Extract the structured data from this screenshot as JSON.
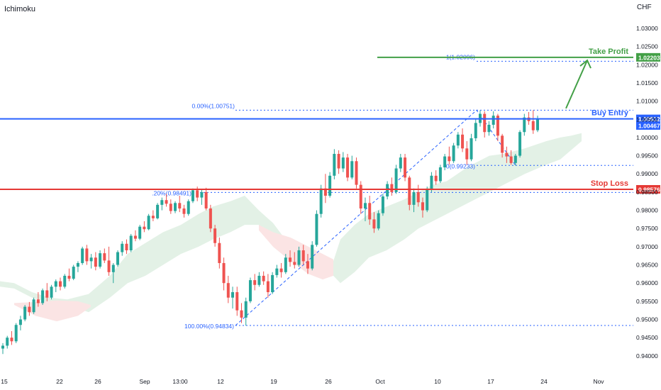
{
  "indicator": "Ichimoku",
  "currency": "CHF",
  "colors": {
    "up": "#26a69a",
    "down": "#ef5350",
    "take_profit": "#43a047",
    "buy_entry": "#2962ff",
    "stop_loss": "#e53935",
    "fib": "#2962ff",
    "cloud_bull": "#e3f1e6",
    "cloud_bear": "#fbe4e4"
  },
  "chart_data": {
    "type": "candlestick",
    "x_ticks": [
      "15",
      "22",
      "26",
      "Sep",
      "13:00",
      "12",
      "19",
      "26",
      "Oct",
      "10",
      "17",
      "24",
      "Nov"
    ],
    "y_ticks": [
      "1.03000",
      "1.02500",
      "1.02000",
      "1.01500",
      "1.01000",
      "1.00500",
      "1.00000",
      "0.99500",
      "0.99000",
      "0.98500",
      "0.98000",
      "0.97500",
      "0.97000",
      "0.96500",
      "0.96000",
      "0.95500",
      "0.95000",
      "0.94500",
      "0.94000"
    ],
    "ylim": [
      0.9388,
      1.0335
    ],
    "levels": [
      {
        "name": "take_profit",
        "label": "Take Profit",
        "price": 1.02203,
        "badge": "1.02203"
      },
      {
        "name": "buy_entry",
        "label": "Buy Entry",
        "price": 1.00512,
        "badge": "1.00512"
      },
      {
        "name": "stop_loss",
        "label": "Stop Loss",
        "price": 0.98576,
        "badge": "0.98576"
      }
    ],
    "price_badges": [
      {
        "price": 1.00467,
        "text": "1.00467"
      }
    ],
    "fib_labels": [
      {
        "text": "0.00%(1.00751)",
        "price": 1.00751
      },
      {
        "text": "1(1.02096)",
        "price": 1.02096
      },
      {
        "text": "0(0.99233)",
        "price": 0.99233
      },
      {
        "text": ".20%(0.98491)",
        "price": 0.98491
      },
      {
        "text": "100.00%(0.94834)",
        "price": 0.94834
      }
    ],
    "candles": [
      [
        0.942,
        0.9435,
        0.9405,
        0.9428
      ],
      [
        0.9428,
        0.9455,
        0.942,
        0.945
      ],
      [
        0.945,
        0.9468,
        0.943,
        0.944
      ],
      [
        0.944,
        0.949,
        0.9435,
        0.9485
      ],
      [
        0.9485,
        0.951,
        0.947,
        0.95
      ],
      [
        0.95,
        0.954,
        0.9495,
        0.9535
      ],
      [
        0.9535,
        0.9548,
        0.951,
        0.952
      ],
      [
        0.952,
        0.956,
        0.9515,
        0.9555
      ],
      [
        0.9555,
        0.9575,
        0.9535,
        0.9545
      ],
      [
        0.9545,
        0.9585,
        0.954,
        0.958
      ],
      [
        0.958,
        0.96,
        0.955,
        0.956
      ],
      [
        0.956,
        0.9595,
        0.9555,
        0.959
      ],
      [
        0.959,
        0.961,
        0.9575,
        0.9605
      ],
      [
        0.9605,
        0.9615,
        0.958,
        0.959
      ],
      [
        0.959,
        0.9625,
        0.9585,
        0.962
      ],
      [
        0.962,
        0.964,
        0.9605,
        0.9612
      ],
      [
        0.9612,
        0.965,
        0.9608,
        0.9645
      ],
      [
        0.9645,
        0.966,
        0.963,
        0.9655
      ],
      [
        0.9655,
        0.97,
        0.965,
        0.9695
      ],
      [
        0.9695,
        0.9705,
        0.965,
        0.966
      ],
      [
        0.966,
        0.968,
        0.964,
        0.967
      ],
      [
        0.967,
        0.9685,
        0.9635,
        0.9645
      ],
      [
        0.9645,
        0.969,
        0.964,
        0.9682
      ],
      [
        0.9682,
        0.9695,
        0.9655,
        0.9662
      ],
      [
        0.9662,
        0.97,
        0.962,
        0.963
      ],
      [
        0.963,
        0.9655,
        0.96,
        0.965
      ],
      [
        0.965,
        0.969,
        0.9645,
        0.9685
      ],
      [
        0.9685,
        0.9715,
        0.9675,
        0.9708
      ],
      [
        0.9708,
        0.972,
        0.968,
        0.969
      ],
      [
        0.969,
        0.9735,
        0.9685,
        0.973
      ],
      [
        0.973,
        0.9745,
        0.9715,
        0.9722
      ],
      [
        0.9722,
        0.976,
        0.9718,
        0.9755
      ],
      [
        0.9755,
        0.977,
        0.974,
        0.9748
      ],
      [
        0.9748,
        0.979,
        0.9745,
        0.9785
      ],
      [
        0.9785,
        0.98,
        0.977,
        0.9778
      ],
      [
        0.9778,
        0.982,
        0.9775,
        0.9815
      ],
      [
        0.9815,
        0.9835,
        0.98,
        0.9828
      ],
      [
        0.9828,
        0.9845,
        0.981,
        0.9818
      ],
      [
        0.9818,
        0.983,
        0.979,
        0.9798
      ],
      [
        0.9798,
        0.9825,
        0.9792,
        0.982
      ],
      [
        0.982,
        0.984,
        0.9795,
        0.9805
      ],
      [
        0.9805,
        0.9815,
        0.978,
        0.979
      ],
      [
        0.979,
        0.983,
        0.9785,
        0.9825
      ],
      [
        0.9825,
        0.986,
        0.982,
        0.9855
      ],
      [
        0.9855,
        0.9865,
        0.9825,
        0.9835
      ],
      [
        0.9835,
        0.9858,
        0.9815,
        0.985
      ],
      [
        0.985,
        0.9862,
        0.98,
        0.9805
      ],
      [
        0.9805,
        0.9815,
        0.974,
        0.975
      ],
      [
        0.975,
        0.976,
        0.97,
        0.971
      ],
      [
        0.971,
        0.9725,
        0.964,
        0.9655
      ],
      [
        0.9655,
        0.967,
        0.958,
        0.96
      ],
      [
        0.96,
        0.962,
        0.9545,
        0.956
      ],
      [
        0.956,
        0.959,
        0.953,
        0.9575
      ],
      [
        0.9575,
        0.959,
        0.951,
        0.9525
      ],
      [
        0.9525,
        0.9545,
        0.949,
        0.9505
      ],
      [
        0.9505,
        0.956,
        0.9483,
        0.955
      ],
      [
        0.955,
        0.9615,
        0.9545,
        0.9608
      ],
      [
        0.9608,
        0.9625,
        0.958,
        0.9595
      ],
      [
        0.9595,
        0.963,
        0.959,
        0.962
      ],
      [
        0.962,
        0.9632,
        0.9595,
        0.9605
      ],
      [
        0.9605,
        0.9625,
        0.956,
        0.9575
      ],
      [
        0.9575,
        0.963,
        0.957,
        0.9622
      ],
      [
        0.9622,
        0.965,
        0.9615,
        0.964
      ],
      [
        0.964,
        0.9655,
        0.9615,
        0.963
      ],
      [
        0.963,
        0.968,
        0.9625,
        0.967
      ],
      [
        0.967,
        0.969,
        0.9645,
        0.9658
      ],
      [
        0.9658,
        0.9685,
        0.964,
        0.965
      ],
      [
        0.965,
        0.97,
        0.9645,
        0.969
      ],
      [
        0.969,
        0.9705,
        0.965,
        0.966
      ],
      [
        0.966,
        0.968,
        0.9625,
        0.964
      ],
      [
        0.964,
        0.9715,
        0.9635,
        0.9705
      ],
      [
        0.9705,
        0.98,
        0.97,
        0.979
      ],
      [
        0.979,
        0.987,
        0.978,
        0.986
      ],
      [
        0.986,
        0.99,
        0.982,
        0.984
      ],
      [
        0.984,
        0.9905,
        0.9835,
        0.9895
      ],
      [
        0.9895,
        0.9968,
        0.9885,
        0.9955
      ],
      [
        0.9955,
        0.9965,
        0.99,
        0.9915
      ],
      [
        0.9915,
        0.996,
        0.9905,
        0.9945
      ],
      [
        0.9945,
        0.9955,
        0.988,
        0.989
      ],
      [
        0.989,
        0.995,
        0.9885,
        0.9935
      ],
      [
        0.9935,
        0.9945,
        0.986,
        0.987
      ],
      [
        0.987,
        0.988,
        0.979,
        0.9805
      ],
      [
        0.9805,
        0.9835,
        0.977,
        0.982
      ],
      [
        0.982,
        0.984,
        0.976,
        0.9775
      ],
      [
        0.9775,
        0.9795,
        0.9738,
        0.975
      ],
      [
        0.975,
        0.98,
        0.9745,
        0.9792
      ],
      [
        0.9792,
        0.9845,
        0.9785,
        0.9838
      ],
      [
        0.9838,
        0.988,
        0.983,
        0.9872
      ],
      [
        0.9872,
        0.989,
        0.984,
        0.985
      ],
      [
        0.985,
        0.9925,
        0.9845,
        0.9915
      ],
      [
        0.9915,
        0.9955,
        0.9905,
        0.9945
      ],
      [
        0.9945,
        0.9955,
        0.988,
        0.989
      ],
      [
        0.989,
        0.9895,
        0.98,
        0.9815
      ],
      [
        0.9815,
        0.986,
        0.9795,
        0.985
      ],
      [
        0.985,
        0.987,
        0.981,
        0.9822
      ],
      [
        0.9822,
        0.9835,
        0.978,
        0.98
      ],
      [
        0.98,
        0.9865,
        0.9795,
        0.9858
      ],
      [
        0.9858,
        0.9905,
        0.985,
        0.9895
      ],
      [
        0.9895,
        0.991,
        0.987,
        0.988
      ],
      [
        0.988,
        0.9925,
        0.9875,
        0.9918
      ],
      [
        0.9918,
        0.9955,
        0.991,
        0.9948
      ],
      [
        0.9948,
        0.9975,
        0.9925,
        0.9935
      ],
      [
        0.9935,
        0.9985,
        0.993,
        0.9978
      ],
      [
        0.9978,
        1.0015,
        0.997,
        1.0008
      ],
      [
        1.0008,
        1.0025,
        0.996,
        0.997
      ],
      [
        0.997,
        0.999,
        0.9925,
        0.994
      ],
      [
        0.994,
        1.001,
        0.9935,
        0.9998
      ],
      [
        0.9998,
        1.005,
        0.999,
        1.004
      ],
      [
        1.004,
        1.0075,
        1.003,
        1.0065
      ],
      [
        1.0065,
        1.0072,
        1.0,
        1.0015
      ],
      [
        1.0015,
        1.0045,
        1.0005,
        1.0035
      ],
      [
        1.0035,
        1.0072,
        1.0025,
        1.006
      ],
      [
        1.006,
        1.0065,
        0.999,
        1.0005
      ],
      [
        1.0005,
        1.001,
        0.9945,
        0.9958
      ],
      [
        0.9958,
        0.9975,
        0.993,
        0.9948
      ],
      [
        0.9948,
        0.9965,
        0.9925,
        0.993
      ],
      [
        0.993,
        0.9955,
        0.9923,
        0.995
      ],
      [
        0.995,
        1.002,
        0.9945,
        1.0015
      ],
      [
        1.0015,
        1.0065,
        1.0005,
        1.0055
      ],
      [
        1.0055,
        1.007,
        1.0035,
        1.0045
      ],
      [
        1.0045,
        1.0075,
        1.001,
        1.002
      ],
      [
        1.002,
        1.006,
        1.0015,
        1.0052
      ]
    ],
    "cloud": {
      "bull_upper": [
        [
          0,
          0.9605
        ],
        [
          20,
          0.96
        ],
        [
          45,
          0.9575
        ],
        [
          70,
          0.956
        ],
        [
          95,
          0.9555
        ],
        [
          125,
          0.957
        ],
        [
          155,
          0.962
        ],
        [
          180,
          0.968
        ],
        [
          205,
          0.971
        ],
        [
          230,
          0.974
        ],
        [
          255,
          0.976
        ],
        [
          280,
          0.979
        ],
        [
          300,
          0.981
        ],
        [
          325,
          0.9825
        ],
        [
          345,
          0.984
        ],
        [
          365,
          0.98
        ],
        [
          385,
          0.9765
        ],
        [
          410,
          0.97
        ],
        [
          435,
          0.9675
        ],
        [
          470,
          0.966
        ],
        [
          480,
          0.972
        ],
        [
          500,
          0.976
        ],
        [
          520,
          0.979
        ],
        [
          545,
          0.981
        ],
        [
          570,
          0.983
        ],
        [
          590,
          0.985
        ],
        [
          610,
          0.987
        ],
        [
          630,
          0.988
        ],
        [
          660,
          0.992
        ],
        [
          690,
          0.995
        ],
        [
          710,
          0.9955
        ],
        [
          740,
          0.997
        ],
        [
          770,
          0.999
        ],
        [
          790,
          1.0
        ],
        [
          805,
          1.0005
        ],
        [
          820,
          1.0012
        ]
      ],
      "bull_lower": [
        [
          0,
          0.959
        ],
        [
          20,
          0.9585
        ],
        [
          45,
          0.956
        ],
        [
          70,
          0.9545
        ],
        [
          95,
          0.954
        ],
        [
          125,
          0.952
        ],
        [
          155,
          0.956
        ],
        [
          180,
          0.96
        ],
        [
          205,
          0.962
        ],
        [
          230,
          0.965
        ],
        [
          255,
          0.968
        ],
        [
          280,
          0.97
        ],
        [
          300,
          0.972
        ],
        [
          325,
          0.974
        ],
        [
          345,
          0.976
        ],
        [
          365,
          0.976
        ],
        [
          385,
          0.97
        ],
        [
          410,
          0.966
        ],
        [
          435,
          0.963
        ],
        [
          470,
          0.962
        ],
        [
          480,
          0.96
        ],
        [
          500,
          0.963
        ],
        [
          520,
          0.967
        ],
        [
          545,
          0.969
        ],
        [
          570,
          0.972
        ],
        [
          590,
          0.975
        ],
        [
          610,
          0.977
        ],
        [
          630,
          0.979
        ],
        [
          660,
          0.982
        ],
        [
          690,
          0.985
        ],
        [
          710,
          0.987
        ],
        [
          740,
          0.99
        ],
        [
          770,
          0.9925
        ],
        [
          790,
          0.994
        ],
        [
          805,
          0.9965
        ],
        [
          820,
          0.999
        ]
      ],
      "bear_upper": [
        [
          20,
          0.9545
        ],
        [
          50,
          0.9548
        ],
        [
          80,
          0.9552
        ],
        [
          110,
          0.955
        ],
        [
          128,
          0.954
        ],
        [
          365,
          0.976
        ],
        [
          385,
          0.974
        ],
        [
          410,
          0.9725
        ],
        [
          435,
          0.97
        ],
        [
          455,
          0.968
        ],
        [
          470,
          0.9665
        ]
      ],
      "bear_lower": [
        [
          20,
          0.954
        ],
        [
          50,
          0.951
        ],
        [
          80,
          0.9495
        ],
        [
          110,
          0.951
        ],
        [
          128,
          0.9535
        ],
        [
          365,
          0.9745
        ],
        [
          385,
          0.97
        ],
        [
          410,
          0.966
        ],
        [
          435,
          0.9625
        ],
        [
          455,
          0.961
        ],
        [
          470,
          0.962
        ]
      ]
    }
  }
}
